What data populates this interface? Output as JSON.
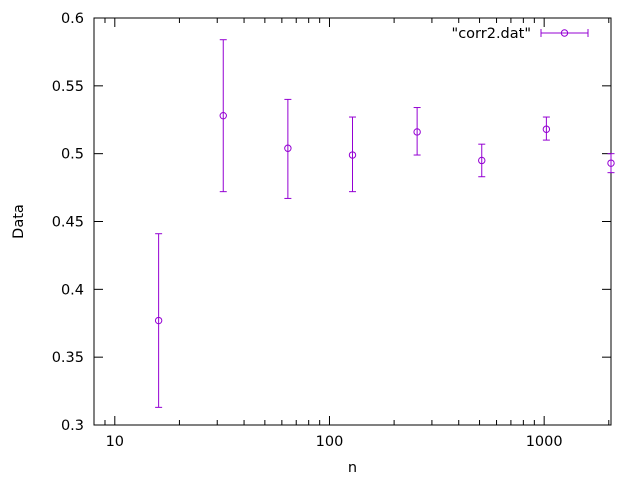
{
  "chart_data": {
    "type": "scatter",
    "title": "",
    "xlabel": "n",
    "ylabel": "Data",
    "xscale": "log",
    "xlim": [
      8,
      2048
    ],
    "ylim": [
      0.3,
      0.6
    ],
    "xticks": [
      10,
      100,
      1000
    ],
    "xtick_labels": [
      "10",
      "100",
      "1000"
    ],
    "yticks": [
      0.3,
      0.35,
      0.4,
      0.45,
      0.5,
      0.55,
      0.6
    ],
    "ytick_labels": [
      "0.3",
      "0.35",
      "0.4",
      "0.45",
      "0.5",
      "0.55",
      "0.6"
    ],
    "grid": false,
    "legend_position": "top-right",
    "color": "#9400d3",
    "series": [
      {
        "name": "\"corr2.dat\"",
        "marker": "open-circle",
        "errorbars": true,
        "points": [
          {
            "x": 16,
            "y": 0.377,
            "ylow": 0.313,
            "yhigh": 0.441
          },
          {
            "x": 32,
            "y": 0.528,
            "ylow": 0.472,
            "yhigh": 0.584
          },
          {
            "x": 64,
            "y": 0.504,
            "ylow": 0.467,
            "yhigh": 0.54
          },
          {
            "x": 128,
            "y": 0.499,
            "ylow": 0.472,
            "yhigh": 0.527
          },
          {
            "x": 256,
            "y": 0.516,
            "ylow": 0.499,
            "yhigh": 0.534
          },
          {
            "x": 512,
            "y": 0.495,
            "ylow": 0.483,
            "yhigh": 0.507
          },
          {
            "x": 1024,
            "y": 0.518,
            "ylow": 0.51,
            "yhigh": 0.527
          },
          {
            "x": 2048,
            "y": 0.493,
            "ylow": 0.486,
            "yhigh": 0.5
          }
        ]
      }
    ]
  }
}
